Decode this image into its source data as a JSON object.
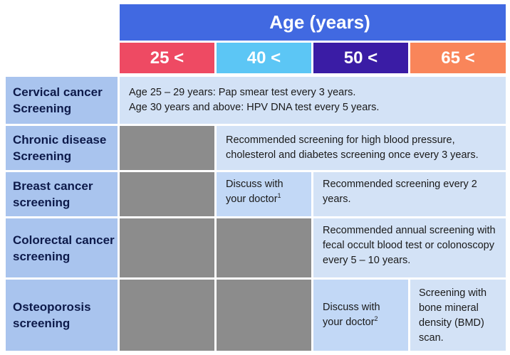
{
  "header": {
    "title": "Age (years)",
    "age_groups": [
      {
        "label": "25 <",
        "color": "#ee4a63"
      },
      {
        "label": "40 <",
        "color": "#5cc6f5"
      },
      {
        "label": "50 <",
        "color": "#3a1ca5"
      },
      {
        "label": "65 <",
        "color": "#f9855a"
      }
    ]
  },
  "rows": {
    "cervical": {
      "label_line1": "Cervical cancer",
      "label_line2": "Screening",
      "text_line1": "Age 25 – 29 years: Pap smear test every 3 years.",
      "text_line2": "Age 30 years and above: HPV DNA test every 5 years."
    },
    "chronic": {
      "label_line1": "Chronic disease",
      "label_line2": "Screening",
      "text_line1": "Recommended screening for high blood pressure,",
      "text_line2": "cholesterol and diabetes screening once every 3 years."
    },
    "breast": {
      "label_line1": "Breast cancer",
      "label_line2": "screening",
      "discuss_line1": "Discuss with",
      "discuss_line2": "your doctor",
      "discuss_note": "1",
      "text_line1": "Recommended screening every 2",
      "text_line2": "years."
    },
    "colorectal": {
      "label_line1": "Colorectal cancer",
      "label_line2": "screening",
      "text_line1": "Recommended annual screening with",
      "text_line2": "fecal occult blood test or colonoscopy",
      "text_line3": "every 5 – 10 years."
    },
    "osteoporosis": {
      "label_line1": "Osteoporosis",
      "label_line2": "screening",
      "discuss_line1": "Discuss with",
      "discuss_line2": "your doctor",
      "discuss_note": "2",
      "text_line1": "Screening with",
      "text_line2": "bone mineral",
      "text_line3": "density (BMD)",
      "text_line4": "scan."
    }
  }
}
